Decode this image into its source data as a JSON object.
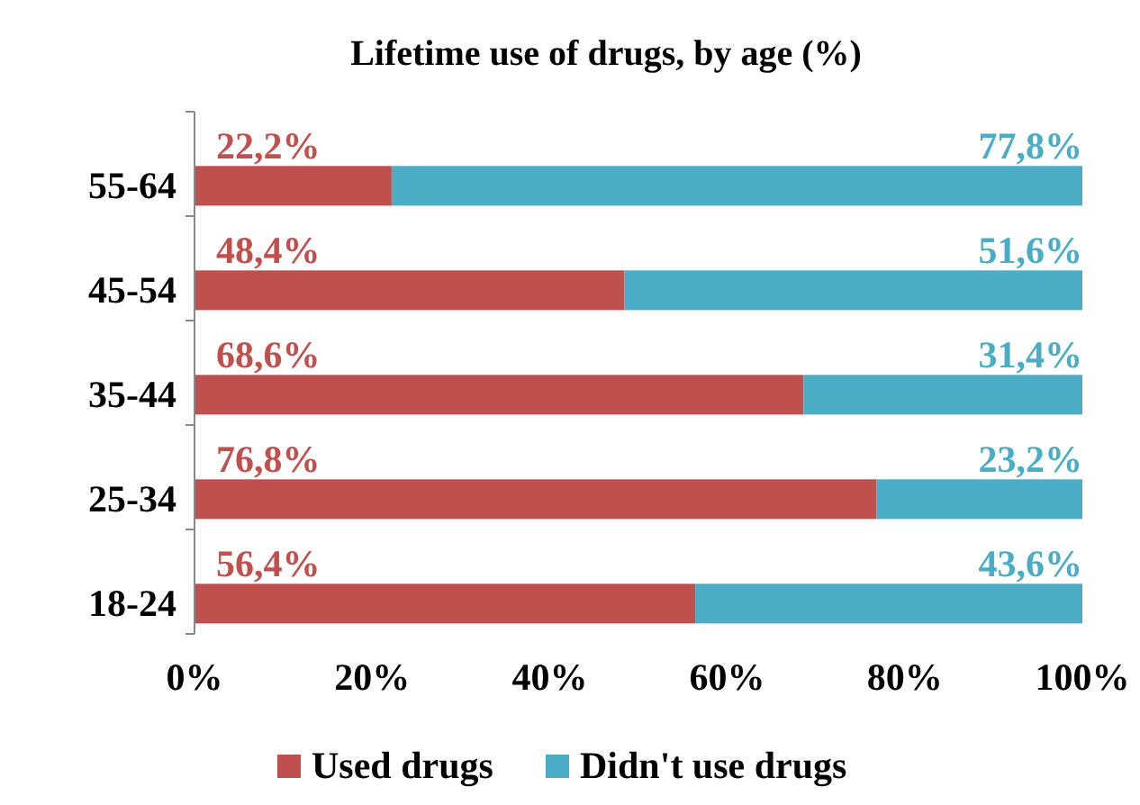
{
  "chart_data": {
    "type": "bar",
    "orientation": "horizontal",
    "stacked": true,
    "title": "Lifetime use of drugs, by age (%)",
    "categories": [
      "55-64",
      "45-54",
      "35-44",
      "25-34",
      "18-24"
    ],
    "series": [
      {
        "name": "Used drugs",
        "color": "#c0504d",
        "values": [
          22.2,
          48.4,
          68.6,
          76.8,
          56.4
        ],
        "value_labels": [
          "22,2%",
          "48,4%",
          "68,6%",
          "76,8%",
          "56,4%"
        ]
      },
      {
        "name": "Didn't use drugs",
        "color": "#4bacc6",
        "values": [
          77.8,
          51.6,
          31.4,
          23.2,
          43.6
        ],
        "value_labels": [
          "77,8%",
          "51,6%",
          "31,4%",
          "23,2%",
          "43,6%"
        ]
      }
    ],
    "xlim": [
      0,
      100
    ],
    "xticks": [
      {
        "value": 0,
        "label": "0%"
      },
      {
        "value": 20,
        "label": "20%"
      },
      {
        "value": 40,
        "label": "40%"
      },
      {
        "value": 60,
        "label": "60%"
      },
      {
        "value": 80,
        "label": "80%"
      },
      {
        "value": 100,
        "label": "100%"
      }
    ],
    "grid": false,
    "legend": "bottom"
  }
}
